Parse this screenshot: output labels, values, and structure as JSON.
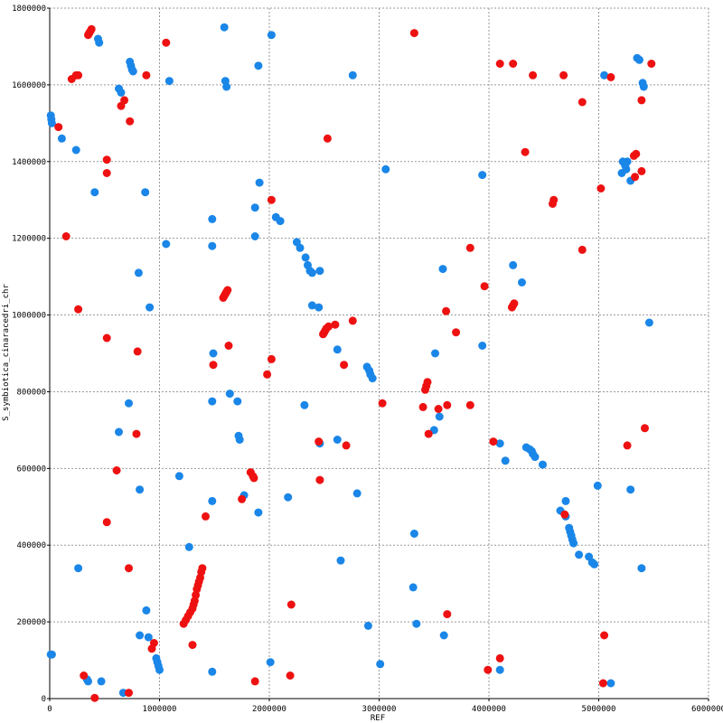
{
  "chart_data": {
    "type": "scatter",
    "xlabel": "REF",
    "ylabel": "S_symbiotica_cinaracedri_chr",
    "xlim": [
      0,
      6000000
    ],
    "ylim": [
      0,
      1800000
    ],
    "x_ticks": [
      0,
      1000000,
      2000000,
      3000000,
      4000000,
      5000000,
      6000000
    ],
    "x_tick_labels": [
      "0",
      "1000000",
      "2000000",
      "3000000",
      "4000000",
      "5000000",
      "6000000"
    ],
    "y_ticks": [
      0,
      200000,
      400000,
      600000,
      800000,
      1000000,
      1200000,
      1400000,
      1600000,
      1800000
    ],
    "y_tick_labels": [
      "0",
      "200000",
      "400000",
      "600000",
      "800000",
      "1000000",
      "1200000",
      "1400000",
      "1600000",
      "1800000"
    ],
    "grid": true,
    "colors": {
      "forward": "#1a86e8",
      "reverse": "#ee1111",
      "grid": "#999999",
      "axis": "#000000"
    },
    "series": [
      {
        "color": "#1a86e8",
        "points": [
          [
            10000,
            1520000
          ],
          [
            15000,
            1510000
          ],
          [
            20000,
            1500000
          ],
          [
            110000,
            1460000
          ],
          [
            240000,
            1430000
          ],
          [
            410000,
            1320000
          ],
          [
            440000,
            1720000
          ],
          [
            450000,
            1710000
          ],
          [
            630000,
            1590000
          ],
          [
            650000,
            1580000
          ],
          [
            730000,
            1660000
          ],
          [
            740000,
            1650000
          ],
          [
            750000,
            1640000
          ],
          [
            760000,
            1635000
          ],
          [
            870000,
            1320000
          ],
          [
            1090000,
            1610000
          ],
          [
            1590000,
            1750000
          ],
          [
            1600000,
            1610000
          ],
          [
            1610000,
            1595000
          ],
          [
            1900000,
            1650000
          ],
          [
            2020000,
            1730000
          ],
          [
            2760000,
            1625000
          ],
          [
            1910000,
            1345000
          ],
          [
            1870000,
            1280000
          ],
          [
            2060000,
            1255000
          ],
          [
            2100000,
            1245000
          ],
          [
            1480000,
            1250000
          ],
          [
            1870000,
            1205000
          ],
          [
            1480000,
            1180000
          ],
          [
            1060000,
            1185000
          ],
          [
            2250000,
            1190000
          ],
          [
            2280000,
            1175000
          ],
          [
            2330000,
            1150000
          ],
          [
            2350000,
            1130000
          ],
          [
            2370000,
            1115000
          ],
          [
            2390000,
            1110000
          ],
          [
            2460000,
            1115000
          ],
          [
            810000,
            1110000
          ],
          [
            910000,
            1020000
          ],
          [
            2390000,
            1025000
          ],
          [
            2450000,
            1020000
          ],
          [
            2620000,
            910000
          ],
          [
            2890000,
            865000
          ],
          [
            2910000,
            855000
          ],
          [
            2920000,
            845000
          ],
          [
            2940000,
            835000
          ],
          [
            3060000,
            1380000
          ],
          [
            3580000,
            1120000
          ],
          [
            3940000,
            1365000
          ],
          [
            3940000,
            920000
          ],
          [
            3510000,
            900000
          ],
          [
            4220000,
            1130000
          ],
          [
            4300000,
            1085000
          ],
          [
            5050000,
            1625000
          ],
          [
            5220000,
            1400000
          ],
          [
            5240000,
            1390000
          ],
          [
            5250000,
            1380000
          ],
          [
            5260000,
            1400000
          ],
          [
            5210000,
            1370000
          ],
          [
            5290000,
            1350000
          ],
          [
            5350000,
            1670000
          ],
          [
            5370000,
            1665000
          ],
          [
            5400000,
            1605000
          ],
          [
            5410000,
            1595000
          ],
          [
            5460000,
            980000
          ],
          [
            1490000,
            900000
          ],
          [
            1640000,
            795000
          ],
          [
            1480000,
            775000
          ],
          [
            1710000,
            775000
          ],
          [
            720000,
            770000
          ],
          [
            2320000,
            765000
          ],
          [
            1720000,
            685000
          ],
          [
            1730000,
            675000
          ],
          [
            630000,
            695000
          ],
          [
            2460000,
            665000
          ],
          [
            2620000,
            675000
          ],
          [
            3500000,
            700000
          ],
          [
            3550000,
            735000
          ],
          [
            4100000,
            665000
          ],
          [
            4150000,
            620000
          ],
          [
            4340000,
            655000
          ],
          [
            4370000,
            650000
          ],
          [
            4390000,
            645000
          ],
          [
            4400000,
            638000
          ],
          [
            4420000,
            630000
          ],
          [
            4490000,
            610000
          ],
          [
            1180000,
            580000
          ],
          [
            1770000,
            530000
          ],
          [
            2170000,
            525000
          ],
          [
            2800000,
            535000
          ],
          [
            4990000,
            555000
          ],
          [
            5290000,
            545000
          ],
          [
            820000,
            545000
          ],
          [
            1480000,
            515000
          ],
          [
            1900000,
            485000
          ],
          [
            4700000,
            515000
          ],
          [
            4650000,
            490000
          ],
          [
            4700000,
            475000
          ],
          [
            4730000,
            445000
          ],
          [
            4740000,
            435000
          ],
          [
            4750000,
            425000
          ],
          [
            4760000,
            415000
          ],
          [
            4770000,
            405000
          ],
          [
            4820000,
            375000
          ],
          [
            4910000,
            370000
          ],
          [
            4940000,
            355000
          ],
          [
            4960000,
            350000
          ],
          [
            3320000,
            430000
          ],
          [
            1270000,
            395000
          ],
          [
            2650000,
            360000
          ],
          [
            5390000,
            340000
          ],
          [
            260000,
            340000
          ],
          [
            3310000,
            290000
          ],
          [
            880000,
            230000
          ],
          [
            3340000,
            195000
          ],
          [
            2900000,
            190000
          ],
          [
            820000,
            165000
          ],
          [
            900000,
            160000
          ],
          [
            3590000,
            165000
          ],
          [
            970000,
            105000
          ],
          [
            980000,
            95000
          ],
          [
            990000,
            85000
          ],
          [
            1000000,
            75000
          ],
          [
            2010000,
            95000
          ],
          [
            3010000,
            90000
          ],
          [
            1480000,
            70000
          ],
          [
            4100000,
            75000
          ],
          [
            5110000,
            40000
          ],
          [
            10000,
            115000
          ],
          [
            20000,
            115000
          ],
          [
            340000,
            50000
          ],
          [
            350000,
            45000
          ],
          [
            470000,
            45000
          ],
          [
            670000,
            15000
          ]
        ]
      },
      {
        "color": "#ee1111",
        "points": [
          [
            350000,
            1730000
          ],
          [
            360000,
            1735000
          ],
          [
            370000,
            1740000
          ],
          [
            380000,
            1745000
          ],
          [
            200000,
            1615000
          ],
          [
            240000,
            1625000
          ],
          [
            260000,
            1625000
          ],
          [
            880000,
            1625000
          ],
          [
            1060000,
            1710000
          ],
          [
            3320000,
            1735000
          ],
          [
            4100000,
            1655000
          ],
          [
            4220000,
            1655000
          ],
          [
            4400000,
            1625000
          ],
          [
            4680000,
            1625000
          ],
          [
            5110000,
            1620000
          ],
          [
            5480000,
            1655000
          ],
          [
            680000,
            1560000
          ],
          [
            650000,
            1545000
          ],
          [
            730000,
            1505000
          ],
          [
            4850000,
            1555000
          ],
          [
            5390000,
            1560000
          ],
          [
            80000,
            1490000
          ],
          [
            2530000,
            1460000
          ],
          [
            520000,
            1405000
          ],
          [
            520000,
            1370000
          ],
          [
            4330000,
            1425000
          ],
          [
            5320000,
            1415000
          ],
          [
            5340000,
            1420000
          ],
          [
            5390000,
            1375000
          ],
          [
            5330000,
            1360000
          ],
          [
            5020000,
            1330000
          ],
          [
            4580000,
            1290000
          ],
          [
            4590000,
            1300000
          ],
          [
            2020000,
            1300000
          ],
          [
            150000,
            1205000
          ],
          [
            3830000,
            1175000
          ],
          [
            4850000,
            1170000
          ],
          [
            1580000,
            1045000
          ],
          [
            1590000,
            1050000
          ],
          [
            1600000,
            1055000
          ],
          [
            1610000,
            1060000
          ],
          [
            1620000,
            1065000
          ],
          [
            3960000,
            1075000
          ],
          [
            4210000,
            1020000
          ],
          [
            4220000,
            1025000
          ],
          [
            4230000,
            1030000
          ],
          [
            260000,
            1015000
          ],
          [
            3610000,
            1010000
          ],
          [
            2490000,
            950000
          ],
          [
            2500000,
            955000
          ],
          [
            2510000,
            960000
          ],
          [
            2520000,
            965000
          ],
          [
            2540000,
            970000
          ],
          [
            2600000,
            975000
          ],
          [
            2760000,
            985000
          ],
          [
            3700000,
            955000
          ],
          [
            1630000,
            920000
          ],
          [
            520000,
            940000
          ],
          [
            800000,
            905000
          ],
          [
            2020000,
            885000
          ],
          [
            1490000,
            870000
          ],
          [
            1980000,
            845000
          ],
          [
            2680000,
            870000
          ],
          [
            3420000,
            805000
          ],
          [
            3430000,
            815000
          ],
          [
            3440000,
            825000
          ],
          [
            3400000,
            760000
          ],
          [
            3540000,
            755000
          ],
          [
            3620000,
            765000
          ],
          [
            3830000,
            765000
          ],
          [
            3030000,
            770000
          ],
          [
            790000,
            690000
          ],
          [
            3450000,
            690000
          ],
          [
            2450000,
            670000
          ],
          [
            2700000,
            660000
          ],
          [
            4040000,
            670000
          ],
          [
            5260000,
            660000
          ],
          [
            5420000,
            705000
          ],
          [
            610000,
            595000
          ],
          [
            1830000,
            590000
          ],
          [
            1850000,
            580000
          ],
          [
            1860000,
            575000
          ],
          [
            2460000,
            570000
          ],
          [
            1750000,
            520000
          ],
          [
            1420000,
            475000
          ],
          [
            4690000,
            480000
          ],
          [
            520000,
            460000
          ],
          [
            720000,
            340000
          ],
          [
            1380000,
            330000
          ],
          [
            1390000,
            340000
          ],
          [
            1370000,
            315000
          ],
          [
            1360000,
            305000
          ],
          [
            1350000,
            295000
          ],
          [
            1340000,
            285000
          ],
          [
            1330000,
            270000
          ],
          [
            1320000,
            255000
          ],
          [
            1310000,
            245000
          ],
          [
            1300000,
            235000
          ],
          [
            1280000,
            225000
          ],
          [
            1260000,
            215000
          ],
          [
            1240000,
            205000
          ],
          [
            1220000,
            195000
          ],
          [
            2200000,
            245000
          ],
          [
            3620000,
            220000
          ],
          [
            930000,
            130000
          ],
          [
            950000,
            145000
          ],
          [
            1300000,
            140000
          ],
          [
            5050000,
            165000
          ],
          [
            4100000,
            105000
          ],
          [
            310000,
            60000
          ],
          [
            2190000,
            60000
          ],
          [
            3990000,
            75000
          ],
          [
            1870000,
            45000
          ],
          [
            5040000,
            40000
          ],
          [
            410000,
            2000
          ],
          [
            720000,
            15000
          ]
        ]
      }
    ]
  }
}
